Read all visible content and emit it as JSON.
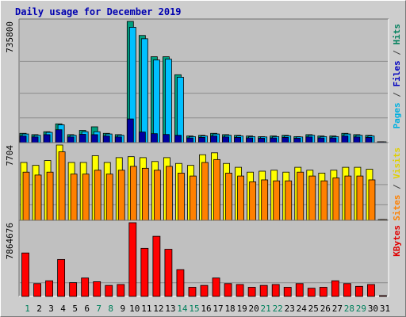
{
  "chart_data": {
    "type": "bar",
    "title": "Daily usage for December 2019",
    "days": [
      "1",
      "2",
      "3",
      "4",
      "5",
      "6",
      "7",
      "8",
      "9",
      "10",
      "11",
      "12",
      "13",
      "14",
      "15",
      "16",
      "17",
      "18",
      "19",
      "20",
      "21",
      "22",
      "23",
      "24",
      "25",
      "26",
      "27",
      "28",
      "29",
      "30",
      "31"
    ],
    "weekend_days": [
      "1",
      "7",
      "8",
      "14",
      "15",
      "21",
      "22",
      "28",
      "29"
    ],
    "panels": [
      {
        "id": "hits",
        "max_label": "735800",
        "ylim": [
          0,
          735800
        ],
        "legend": [
          {
            "text": "Pages",
            "color": "#00b0e0"
          },
          {
            "text": " / ",
            "color": "#444444"
          },
          {
            "text": "Files",
            "color": "#0000c0"
          },
          {
            "text": " / ",
            "color": "#444444"
          },
          {
            "text": "Hits",
            "color": "#00805c"
          }
        ],
        "series": [
          {
            "name": "Hits",
            "color": "#00a080",
            "values": [
              52000,
              44000,
              62000,
              110000,
              44000,
              70000,
              92000,
              52000,
              44000,
              735800,
              650000,
              520000,
              520000,
              410000,
              36000,
              40000,
              52000,
              44000,
              40000,
              36000,
              32000,
              36000,
              40000,
              32000,
              44000,
              36000,
              36000,
              52000,
              44000,
              40000,
              0
            ]
          },
          {
            "name": "Files",
            "color": "#00c0ff",
            "values": [
              48000,
              40000,
              58000,
              104000,
              40000,
              62000,
              62000,
              48000,
              40000,
              700000,
              630000,
              500000,
              505000,
              395000,
              32000,
              36000,
              48000,
              40000,
              36000,
              32000,
              30000,
              32000,
              36000,
              30000,
              40000,
              32000,
              32000,
              48000,
              40000,
              36000,
              0
            ]
          },
          {
            "name": "Pages",
            "color": "#0000a0",
            "values": [
              36000,
              30000,
              44000,
              74000,
              30000,
              46000,
              44000,
              36000,
              30000,
              140000,
              60000,
              50000,
              45000,
              40000,
              24000,
              27000,
              36000,
              30000,
              27000,
              24000,
              22000,
              24000,
              27000,
              22000,
              30000,
              24000,
              24000,
              36000,
              30000,
              27000,
              0
            ]
          }
        ]
      },
      {
        "id": "visits",
        "max_label": "7704",
        "ylim": [
          0,
          7704
        ],
        "legend": [
          {
            "text": "Sites",
            "color": "#ff8000"
          },
          {
            "text": " / ",
            "color": "#444444"
          },
          {
            "text": "Visits",
            "color": "#e0d000"
          }
        ],
        "series": [
          {
            "name": "Visits",
            "color": "#ffff00",
            "values": [
              5900,
              5600,
              6100,
              7704,
              5900,
              5900,
              6600,
              5900,
              6400,
              6500,
              6400,
              6000,
              6400,
              5800,
              5600,
              6700,
              6900,
              5800,
              5400,
              4900,
              5000,
              5100,
              4900,
              5400,
              5100,
              4800,
              5100,
              5400,
              5400,
              5200,
              0
            ]
          },
          {
            "name": "Sites",
            "color": "#ff8000",
            "values": [
              4900,
              4600,
              4900,
              7000,
              4700,
              4700,
              5100,
              4700,
              5100,
              5500,
              5300,
              5100,
              5500,
              4800,
              4500,
              5900,
              6200,
              4800,
              4500,
              3900,
              4100,
              4000,
              4000,
              4900,
              4500,
              4000,
              4300,
              4500,
              4500,
              4100,
              0
            ]
          }
        ]
      },
      {
        "id": "kbytes",
        "max_label": "7864676",
        "ylim": [
          0,
          7864676
        ],
        "legend": [
          {
            "text": "KBytes",
            "color": "#e00000"
          }
        ],
        "series": [
          {
            "name": "KBytes",
            "color": "#ff0000",
            "values": [
              4600000,
              1300000,
              1600000,
              3900000,
              1400000,
              1900000,
              1500000,
              1100000,
              1200000,
              7864676,
              5100000,
              6400000,
              5000000,
              2800000,
              900000,
              1100000,
              1900000,
              1300000,
              1200000,
              900000,
              1100000,
              1200000,
              900000,
              1300000,
              800000,
              900000,
              1600000,
              1300000,
              1000000,
              1200000,
              0
            ]
          }
        ]
      }
    ]
  }
}
